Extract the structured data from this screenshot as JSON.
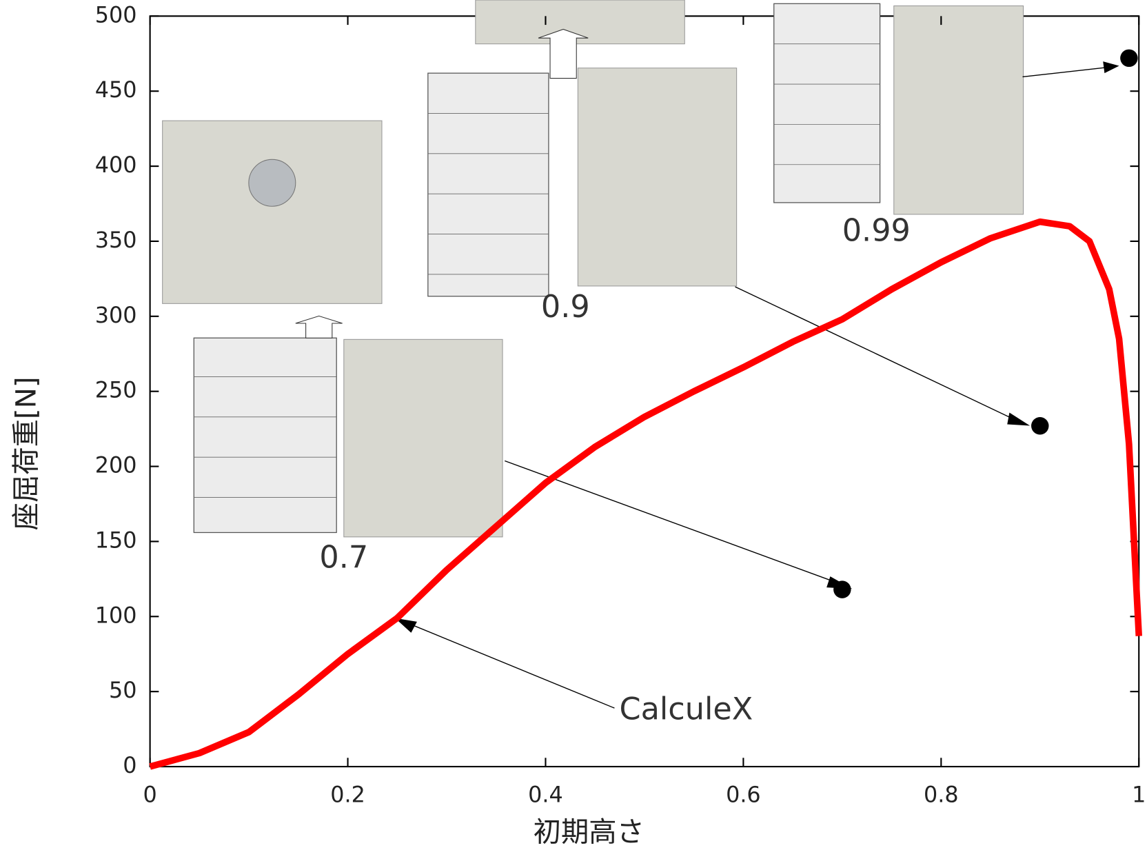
{
  "chart_data": {
    "type": "line",
    "xlabel": "初期高さ",
    "ylabel": "座屈荷重[N]",
    "xlim": [
      0,
      1
    ],
    "xticks": [
      0,
      0.2,
      0.4,
      0.6,
      0.8,
      1
    ],
    "ylim": [
      0,
      500
    ],
    "yticks": [
      0,
      50,
      100,
      150,
      200,
      250,
      300,
      350,
      400,
      450,
      500
    ],
    "series": [
      {
        "name": "CalculeX",
        "color": "#ff0000",
        "x": [
          0,
          0.05,
          0.1,
          0.15,
          0.2,
          0.25,
          0.3,
          0.35,
          0.4,
          0.45,
          0.5,
          0.55,
          0.6,
          0.65,
          0.7,
          0.75,
          0.8,
          0.85,
          0.9,
          0.93,
          0.95,
          0.97,
          0.98,
          0.99,
          1.0
        ],
        "values": [
          0,
          9,
          23,
          48,
          75,
          99,
          131,
          160,
          189,
          213,
          233,
          250,
          266,
          283,
          298,
          318,
          336,
          352,
          363,
          360,
          350,
          318,
          285,
          215,
          87
        ]
      },
      {
        "type": "scatter",
        "color": "#000000",
        "x": [
          0.7,
          0.9,
          0.99
        ],
        "values": [
          118,
          227,
          472
        ]
      }
    ]
  }
}
